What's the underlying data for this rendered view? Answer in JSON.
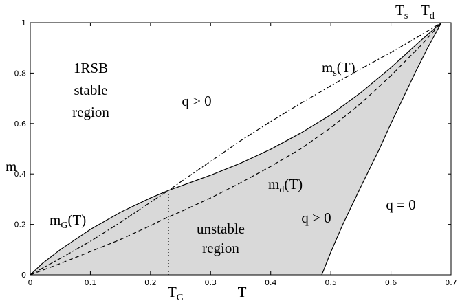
{
  "chart_data": {
    "type": "line",
    "title": "",
    "xlabel": "T",
    "ylabel": "m",
    "xlim": [
      0,
      0.7
    ],
    "ylim": [
      0,
      1
    ],
    "grid": false,
    "legend": "none",
    "x_ticks": [
      0,
      0.1,
      0.2,
      0.3,
      0.4,
      0.5,
      0.6,
      0.7
    ],
    "y_ticks": [
      0,
      0.2,
      0.4,
      0.6,
      0.8,
      1
    ],
    "x_tick_labels": [
      "0",
      "0.1",
      "0.2",
      "0.3",
      "0.4",
      "0.5",
      "0.6",
      "0.7"
    ],
    "y_tick_labels": [
      "0",
      "0.2",
      "0.4",
      "0.6",
      "0.8",
      "1"
    ],
    "series": [
      {
        "name": "m_G(T)",
        "style": "solid",
        "x": [
          0,
          0.02,
          0.05,
          0.1,
          0.15,
          0.2,
          0.23,
          0.25,
          0.3,
          0.35,
          0.4,
          0.45,
          0.5,
          0.55,
          0.6,
          0.65,
          0.684
        ],
        "y": [
          0,
          0.045,
          0.1,
          0.18,
          0.248,
          0.305,
          0.335,
          0.352,
          0.395,
          0.443,
          0.498,
          0.562,
          0.635,
          0.723,
          0.822,
          0.93,
          1.0
        ]
      },
      {
        "name": "m_s(T)",
        "style": "dash-dot",
        "x": [
          0,
          0.05,
          0.1,
          0.15,
          0.2,
          0.23,
          0.25,
          0.3,
          0.35,
          0.4,
          0.45,
          0.5,
          0.55,
          0.6,
          0.65,
          0.684
        ],
        "y": [
          0,
          0.065,
          0.133,
          0.208,
          0.288,
          0.335,
          0.368,
          0.45,
          0.532,
          0.608,
          0.68,
          0.75,
          0.817,
          0.882,
          0.951,
          1.0
        ]
      },
      {
        "name": "m_d(T)",
        "style": "dashed",
        "x": [
          0,
          0.05,
          0.1,
          0.15,
          0.2,
          0.23,
          0.25,
          0.3,
          0.35,
          0.4,
          0.45,
          0.5,
          0.55,
          0.6,
          0.65,
          0.684
        ],
        "y": [
          0,
          0.045,
          0.092,
          0.14,
          0.195,
          0.23,
          0.25,
          0.305,
          0.365,
          0.43,
          0.5,
          0.583,
          0.68,
          0.79,
          0.91,
          1.0
        ]
      },
      {
        "name": "boundary",
        "style": "solid",
        "x": [
          0.485,
          0.5,
          0.52,
          0.55,
          0.58,
          0.6,
          0.62,
          0.64,
          0.66,
          0.684
        ],
        "y": [
          0,
          0.09,
          0.2,
          0.35,
          0.495,
          0.6,
          0.7,
          0.8,
          0.895,
          1.0
        ]
      }
    ],
    "vertical_marker": {
      "x": 0.23,
      "y_top": 0.335,
      "label": "T_G"
    },
    "annotations": {
      "stable_region": [
        "1RSB",
        "stable",
        "region"
      ],
      "q_pos_top": "q > 0",
      "q_pos_mid": "q > 0",
      "q_zero": "q = 0",
      "unstable_region": [
        "unstable",
        "region"
      ],
      "Ts": "T_s",
      "Td": "T_d",
      "ms": "m_s(T)",
      "md": "m_d(T)",
      "mG": "m_G(T)"
    }
  },
  "colors": {
    "unstable_fill": "#d9d9d9",
    "lines": "#000000"
  }
}
